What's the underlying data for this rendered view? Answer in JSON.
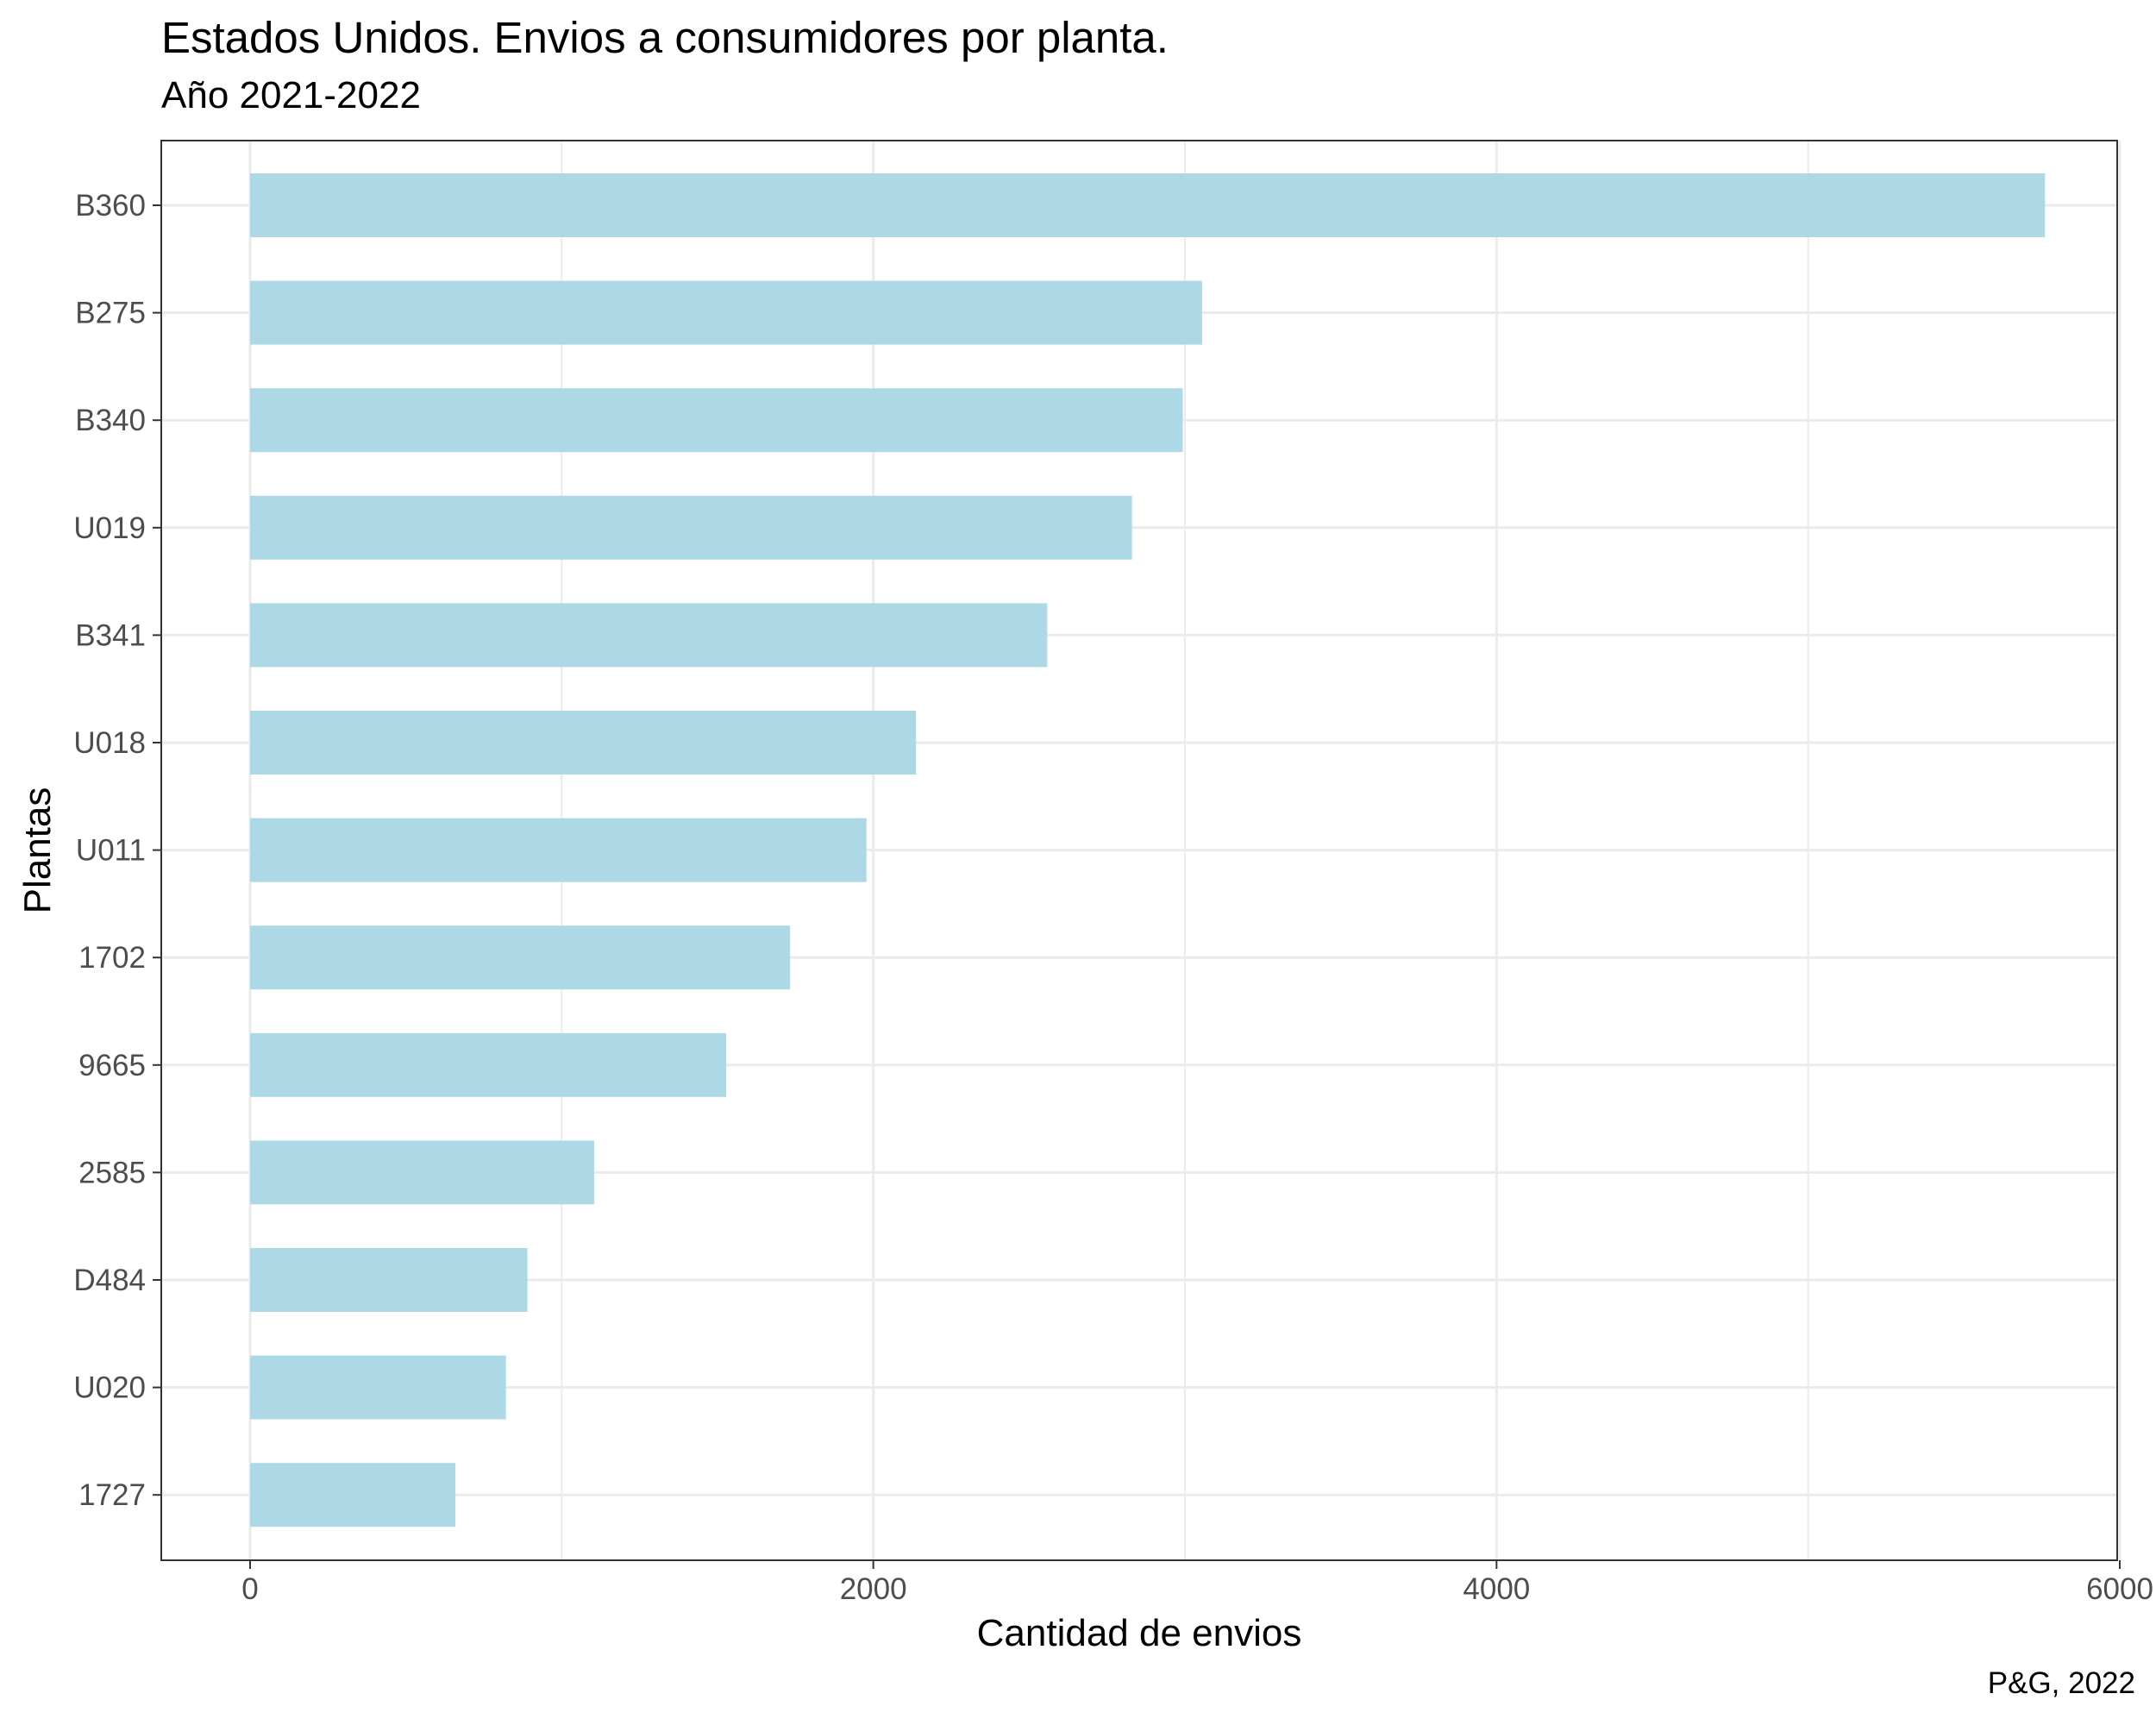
{
  "header": {
    "title": "Estados Unidos. Envios a consumidores por planta.",
    "subtitle": "Año 2021-2022",
    "caption": "P&G, 2022"
  },
  "chart_data": {
    "type": "bar",
    "orientation": "horizontal",
    "title": "Estados Unidos. Envios a consumidores por planta.",
    "subtitle": "Año 2021-2022",
    "xlabel": "Cantidad de envios",
    "ylabel": "Plantas",
    "categories": [
      "B360",
      "B275",
      "B340",
      "U019",
      "B341",
      "U018",
      "U011",
      "1702",
      "9665",
      "2585",
      "D484",
      "U020",
      "1727"
    ],
    "values": [
      5760,
      3055,
      2993,
      2830,
      2558,
      2137,
      1978,
      1733,
      1528,
      1104,
      890,
      821,
      659
    ],
    "xlim": [
      -280,
      6000
    ],
    "xticks": [
      0,
      2000,
      4000,
      6000
    ],
    "grid": true,
    "bar_color": "#ADD8E6",
    "legend": "none"
  }
}
